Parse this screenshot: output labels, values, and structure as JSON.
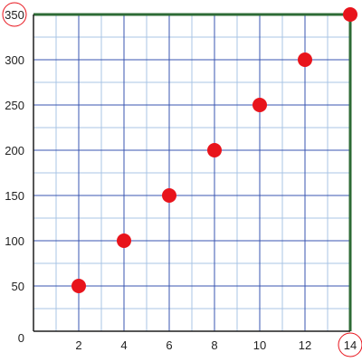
{
  "chart_data": {
    "type": "scatter",
    "title": "",
    "xlabel": "",
    "ylabel": "",
    "xlim": [
      0,
      14
    ],
    "ylim": [
      0,
      350
    ],
    "x_ticks": [
      2,
      4,
      6,
      8,
      10,
      12,
      14
    ],
    "y_ticks": [
      0,
      50,
      100,
      150,
      200,
      250,
      300,
      350
    ],
    "circled_ticks": {
      "x": 14,
      "y": 350
    },
    "grid": true,
    "points": [
      {
        "x": 2,
        "y": 50
      },
      {
        "x": 4,
        "y": 100
      },
      {
        "x": 6,
        "y": 150
      },
      {
        "x": 8,
        "y": 200
      },
      {
        "x": 10,
        "y": 250
      },
      {
        "x": 12,
        "y": 300
      },
      {
        "x": 14,
        "y": 350
      }
    ]
  },
  "colors": {
    "point": "#e8141c",
    "major_grid": "#3a55b0",
    "minor_grid": "#a9c4e6",
    "axis": "#1f1f1f",
    "frame": "#2d6b35",
    "circle": "#e8141c"
  }
}
